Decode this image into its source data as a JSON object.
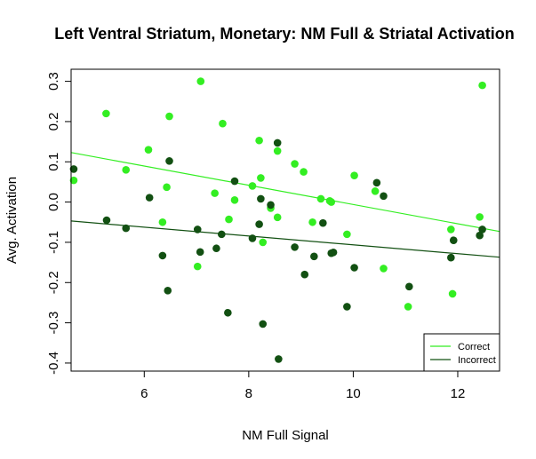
{
  "colors": {
    "correct": "#33ee22",
    "incorrect": "#125012",
    "axis": "#000000",
    "background": "#ffffff"
  },
  "chart_data": {
    "type": "scatter",
    "title": "Left Ventral Striatum, Monetary: NM Full & Striatal Activation",
    "xlabel": "NM Full Signal",
    "ylabel": "Avg. Activation",
    "xlim": [
      4.6,
      12.8
    ],
    "ylim": [
      -0.42,
      0.33
    ],
    "xticks": [
      6,
      8,
      10,
      12
    ],
    "yticks": [
      -0.4,
      -0.3,
      -0.2,
      -0.1,
      0.0,
      0.1,
      0.2,
      0.3
    ],
    "ytick_labels": [
      "-0.4",
      "-0.3",
      "-0.2",
      "-0.1",
      "0.0",
      "0.1",
      "0.2",
      "0.3"
    ],
    "grid": false,
    "legend_position": "bottom-right",
    "series": [
      {
        "name": "Correct",
        "color": "#33ee22",
        "points": [
          [
            4.65,
            0.054
          ],
          [
            5.27,
            0.22
          ],
          [
            5.65,
            0.08
          ],
          [
            6.08,
            0.13
          ],
          [
            6.35,
            -0.05
          ],
          [
            6.43,
            0.037
          ],
          [
            6.48,
            0.213
          ],
          [
            7.02,
            -0.16
          ],
          [
            7.08,
            0.3
          ],
          [
            7.35,
            0.022
          ],
          [
            7.5,
            0.195
          ],
          [
            7.62,
            -0.043
          ],
          [
            7.73,
            0.005
          ],
          [
            8.07,
            0.04
          ],
          [
            8.2,
            0.153
          ],
          [
            8.23,
            0.06
          ],
          [
            8.27,
            -0.1
          ],
          [
            8.42,
            -0.015
          ],
          [
            8.55,
            0.127
          ],
          [
            8.55,
            -0.038
          ],
          [
            8.88,
            0.095
          ],
          [
            9.05,
            0.075
          ],
          [
            9.22,
            -0.05
          ],
          [
            9.38,
            0.008
          ],
          [
            9.55,
            0.003
          ],
          [
            9.58,
            0.0
          ],
          [
            9.88,
            -0.08
          ],
          [
            10.02,
            0.066
          ],
          [
            10.42,
            0.027
          ],
          [
            10.58,
            -0.165
          ],
          [
            11.05,
            -0.26
          ],
          [
            11.87,
            -0.068
          ],
          [
            11.9,
            -0.228
          ],
          [
            12.42,
            -0.037
          ],
          [
            12.47,
            0.29
          ]
        ],
        "trend": {
          "x": [
            4.6,
            12.8
          ],
          "y": [
            0.123,
            -0.073
          ]
        }
      },
      {
        "name": "Incorrect",
        "color": "#125012",
        "points": [
          [
            4.65,
            0.082
          ],
          [
            5.28,
            -0.045
          ],
          [
            5.65,
            -0.065
          ],
          [
            6.1,
            0.011
          ],
          [
            6.35,
            -0.133
          ],
          [
            6.45,
            -0.22
          ],
          [
            6.48,
            0.102
          ],
          [
            7.02,
            -0.068
          ],
          [
            7.07,
            -0.124
          ],
          [
            7.38,
            -0.115
          ],
          [
            7.48,
            -0.08
          ],
          [
            7.6,
            -0.275
          ],
          [
            7.73,
            0.052
          ],
          [
            8.07,
            -0.09
          ],
          [
            8.2,
            -0.055
          ],
          [
            8.23,
            0.008
          ],
          [
            8.27,
            -0.303
          ],
          [
            8.42,
            -0.007
          ],
          [
            8.55,
            0.147
          ],
          [
            8.57,
            -0.39
          ],
          [
            8.88,
            -0.112
          ],
          [
            9.07,
            -0.18
          ],
          [
            9.25,
            -0.135
          ],
          [
            9.42,
            -0.052
          ],
          [
            9.58,
            -0.127
          ],
          [
            9.62,
            -0.125
          ],
          [
            9.88,
            -0.26
          ],
          [
            10.02,
            -0.163
          ],
          [
            10.45,
            0.048
          ],
          [
            10.58,
            0.015
          ],
          [
            11.07,
            -0.21
          ],
          [
            11.87,
            -0.138
          ],
          [
            11.92,
            -0.095
          ],
          [
            12.42,
            -0.083
          ],
          [
            12.47,
            -0.068
          ]
        ],
        "trend": {
          "x": [
            4.6,
            12.8
          ],
          "y": [
            -0.047,
            -0.137
          ]
        }
      }
    ]
  }
}
